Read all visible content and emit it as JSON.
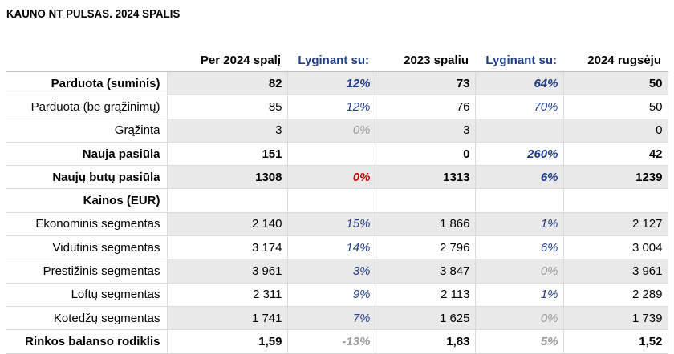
{
  "title": "KAUNO NT PULSAS. 2024 SPALIS",
  "headers": [
    "",
    "Per 2024 spalį",
    "Lyginant su:",
    "2023 spaliu",
    "Lyginant su:",
    "2024 rugsėju"
  ],
  "rows": [
    {
      "label": "Parduota (suminis)",
      "bold": true,
      "shade": true,
      "v1": "82",
      "p1": "12%",
      "p1c": "blue",
      "v2": "73",
      "p2": "64%",
      "p2c": "blue",
      "v3": "50"
    },
    {
      "label": "Parduota (be grąžinimų)",
      "bold": false,
      "shade": false,
      "v1": "85",
      "p1": "12%",
      "p1c": "blue",
      "v2": "76",
      "p2": "70%",
      "p2c": "blue",
      "v3": "50"
    },
    {
      "label": "Grąžinta",
      "bold": false,
      "shade": true,
      "v1": "3",
      "p1": "0%",
      "p1c": "grey",
      "v2": "3",
      "p2": "",
      "p2c": "",
      "v3": "0"
    },
    {
      "label": "Nauja pasiūla",
      "bold": true,
      "shade": false,
      "v1": "151",
      "p1": "",
      "p1c": "",
      "v2": "0",
      "p2": "260%",
      "p2c": "blue",
      "v3": "42"
    },
    {
      "label": "Naujų butų pasiūla",
      "bold": true,
      "shade": true,
      "v1": "1308",
      "p1": "0%",
      "p1c": "red",
      "v2": "1313",
      "p2": "6%",
      "p2c": "blue",
      "v3": "1239"
    },
    {
      "label": "Kainos (EUR)",
      "bold": true,
      "shade": false,
      "v1": "",
      "p1": "",
      "p1c": "",
      "v2": "",
      "p2": "",
      "p2c": "",
      "v3": ""
    },
    {
      "label": "Ekonominis segmentas",
      "bold": false,
      "shade": true,
      "v1": "2 140",
      "p1": "15%",
      "p1c": "blue",
      "v2": "1 866",
      "p2": "1%",
      "p2c": "blue",
      "v3": "2 127"
    },
    {
      "label": "Vidutinis segmentas",
      "bold": false,
      "shade": false,
      "v1": "3 174",
      "p1": "14%",
      "p1c": "blue",
      "v2": "2 796",
      "p2": "6%",
      "p2c": "blue",
      "v3": "3 004"
    },
    {
      "label": "Prestižinis segmentas",
      "bold": false,
      "shade": true,
      "v1": "3 961",
      "p1": "3%",
      "p1c": "blue",
      "v2": "3 847",
      "p2": "0%",
      "p2c": "grey",
      "v3": "3 961"
    },
    {
      "label": "Loftų segmentas",
      "bold": false,
      "shade": false,
      "v1": "2 311",
      "p1": "9%",
      "p1c": "blue",
      "v2": "2 113",
      "p2": "1%",
      "p2c": "blue",
      "v3": "2 289"
    },
    {
      "label": "Kotedžų segmentas",
      "bold": false,
      "shade": true,
      "v1": "1 741",
      "p1": "7%",
      "p1c": "blue",
      "v2": "1 625",
      "p2": "0%",
      "p2c": "grey",
      "v3": "1 739"
    },
    {
      "label": "Rinkos balanso rodiklis",
      "bold": true,
      "shade": false,
      "v1": "1,59",
      "p1": "-13%",
      "p1c": "grey",
      "v2": "1,83",
      "p2": "5%",
      "p2c": "grey",
      "v3": "1,52"
    }
  ]
}
